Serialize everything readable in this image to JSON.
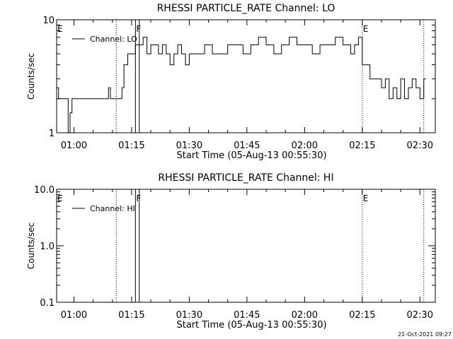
{
  "chart_data": [
    {
      "type": "line",
      "title": "RHESSI PARTICLE_RATE Channel: LO",
      "xlabel": "Start Time (05-Aug-13 00:55:30)",
      "ylabel": "Counts/sec",
      "yscale": "log",
      "xlim": [
        "00:55:30",
        "02:34:00"
      ],
      "ylim": [
        1,
        10
      ],
      "xtick_labels": [
        "01:00",
        "01:15",
        "01:30",
        "01:45",
        "02:00",
        "02:15",
        "02:30"
      ],
      "ytick_labels": [
        "1",
        "10"
      ],
      "legend": {
        "entry": "Channel: LO",
        "placement": "top-left"
      },
      "markers": [
        {
          "label": "E",
          "time": "00:55:30",
          "style": "none"
        },
        {
          "label": "",
          "time": "01:11:00",
          "style": "dotted"
        },
        {
          "label": "F",
          "time": "01:16:00",
          "style": "solid"
        },
        {
          "label": "",
          "time": "01:17:00",
          "style": "solid"
        },
        {
          "label": "E",
          "time": "02:15:00",
          "style": "dotted"
        },
        {
          "label": "",
          "time": "02:31:00",
          "style": "dotted"
        }
      ],
      "series": [
        {
          "x": [
            "00:55:30",
            "00:56:00",
            "00:57:00",
            "00:58:00",
            "00:58:30",
            "00:59:00",
            "00:59:30",
            "01:00:00",
            "01:01:00",
            "01:02:00",
            "01:03:00",
            "01:04:00",
            "01:05:00",
            "01:06:00",
            "01:07:00",
            "01:08:00",
            "01:09:00",
            "01:09:30",
            "01:10:00",
            "01:11:00",
            "01:12:00",
            "01:12:30",
            "01:13:00",
            "01:14:00",
            "01:15:00",
            "01:16:00",
            "01:17:00",
            "01:18:00",
            "01:19:00",
            "01:20:00",
            "01:21:00",
            "01:22:00",
            "01:23:00",
            "01:24:00",
            "01:25:00",
            "01:26:00",
            "01:27:00",
            "01:28:00",
            "01:29:00",
            "01:30:00",
            "01:32:00",
            "01:34:00",
            "01:36:00",
            "01:38:00",
            "01:40:00",
            "01:42:00",
            "01:44:00",
            "01:46:00",
            "01:48:00",
            "01:50:00",
            "01:52:00",
            "01:54:00",
            "01:56:00",
            "01:58:00",
            "02:00:00",
            "02:02:00",
            "02:04:00",
            "02:06:00",
            "02:08:00",
            "02:10:00",
            "02:12:00",
            "02:13:00",
            "02:14:00",
            "02:15:00",
            "02:16:00",
            "02:17:00",
            "02:18:00",
            "02:19:00",
            "02:20:00",
            "02:21:00",
            "02:22:00",
            "02:23:00",
            "02:24:00",
            "02:25:00",
            "02:26:00",
            "02:27:00",
            "02:28:00",
            "02:29:00",
            "02:30:00",
            "02:31:00"
          ],
          "y": [
            2.5,
            2.0,
            2.0,
            2.0,
            1.0,
            1.5,
            2.0,
            2.0,
            2.0,
            2.0,
            2.0,
            2.0,
            2.0,
            2.0,
            2.0,
            2.0,
            2.5,
            2.0,
            2.0,
            2.0,
            2.0,
            2.5,
            4.0,
            5.0,
            5.0,
            6.0,
            6.0,
            7.0,
            5.0,
            6.0,
            6.0,
            5.0,
            6.0,
            5.0,
            4.0,
            5.0,
            6.0,
            5.0,
            4.0,
            5.0,
            5.0,
            6.0,
            5.0,
            5.0,
            6.0,
            6.0,
            5.0,
            6.0,
            7.0,
            6.0,
            5.0,
            6.0,
            7.0,
            6.0,
            6.0,
            5.0,
            6.0,
            6.0,
            7.0,
            6.0,
            5.0,
            6.0,
            7.0,
            4.0,
            4.0,
            3.0,
            3.0,
            3.0,
            2.5,
            3.0,
            2.0,
            2.5,
            2.0,
            3.0,
            2.0,
            2.5,
            3.0,
            2.5,
            2.0,
            3.0
          ]
        }
      ]
    },
    {
      "type": "line",
      "title": "RHESSI PARTICLE_RATE Channel: HI",
      "xlabel": "Start Time (05-Aug-13 00:55:30)",
      "ylabel": "Counts/sec",
      "yscale": "log",
      "xlim": [
        "00:55:30",
        "02:34:00"
      ],
      "ylim": [
        0.1,
        10
      ],
      "xtick_labels": [
        "01:00",
        "01:15",
        "01:30",
        "01:45",
        "02:00",
        "02:15",
        "02:30"
      ],
      "ytick_labels": [
        "0.1",
        "1.0",
        "10.0"
      ],
      "legend": {
        "entry": "Channel: HI",
        "placement": "top-left"
      },
      "markers": [
        {
          "label": "E",
          "time": "00:55:30",
          "style": "none"
        },
        {
          "label": "",
          "time": "01:11:00",
          "style": "dotted"
        },
        {
          "label": "F",
          "time": "01:16:00",
          "style": "solid"
        },
        {
          "label": "",
          "time": "01:17:00",
          "style": "solid"
        },
        {
          "label": "E",
          "time": "02:15:00",
          "style": "dotted"
        },
        {
          "label": "",
          "time": "02:31:00",
          "style": "dotted"
        }
      ],
      "series": [
        {
          "x": [],
          "y": []
        }
      ]
    }
  ],
  "footer": {
    "timestamp": "21-Oct-2021 09:27"
  }
}
